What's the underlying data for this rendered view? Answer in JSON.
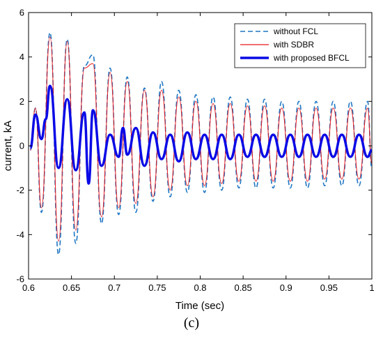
{
  "chart_data": {
    "type": "line",
    "title": "",
    "xlabel": "Time (sec)",
    "ylabel": "current, kA",
    "xlim": [
      0.6,
      1.0
    ],
    "ylim": [
      -6,
      6
    ],
    "xticks": [
      0.6,
      0.65,
      0.7,
      0.75,
      0.8,
      0.85,
      0.9,
      0.95,
      1.0
    ],
    "xtick_labels": [
      "0.6",
      "0.65",
      "0.7",
      "0.75",
      "0.8",
      "0.85",
      "0.9",
      "0.95",
      "1"
    ],
    "yticks": [
      -6,
      -4,
      -2,
      0,
      2,
      4,
      6
    ],
    "ytick_labels": [
      "-6",
      "-4",
      "-2",
      "0",
      "2",
      "4",
      "6"
    ],
    "grid": false,
    "legend_position": "top-right",
    "series": [
      {
        "name": "without FCL",
        "color": "#1f77c4",
        "style": "dashed",
        "peaks": [
          {
            "x": 0.602,
            "y": -0.2
          },
          {
            "x": 0.608,
            "y": 1.7
          },
          {
            "x": 0.615,
            "y": -3.0
          },
          {
            "x": 0.625,
            "y": 5.1
          },
          {
            "x": 0.635,
            "y": -4.9
          },
          {
            "x": 0.645,
            "y": 4.8
          },
          {
            "x": 0.655,
            "y": -4.4
          },
          {
            "x": 0.665,
            "y": 3.6
          },
          {
            "x": 0.675,
            "y": 4.1
          },
          {
            "x": 0.685,
            "y": -3.5
          },
          {
            "x": 0.695,
            "y": 3.5
          },
          {
            "x": 0.705,
            "y": -3.1
          },
          {
            "x": 0.715,
            "y": 3.1
          },
          {
            "x": 0.725,
            "y": -3.0
          },
          {
            "x": 0.735,
            "y": 2.6
          },
          {
            "x": 0.745,
            "y": -2.5
          },
          {
            "x": 0.755,
            "y": 2.9
          },
          {
            "x": 0.765,
            "y": -2.3
          },
          {
            "x": 0.775,
            "y": 2.5
          },
          {
            "x": 0.785,
            "y": -2.1
          },
          {
            "x": 0.795,
            "y": 2.3
          },
          {
            "x": 0.805,
            "y": -2.1
          },
          {
            "x": 0.815,
            "y": 2.2
          },
          {
            "x": 0.825,
            "y": -2.0
          },
          {
            "x": 0.835,
            "y": 2.2
          },
          {
            "x": 0.845,
            "y": -1.9
          },
          {
            "x": 0.855,
            "y": 2.1
          },
          {
            "x": 0.865,
            "y": -1.9
          },
          {
            "x": 0.875,
            "y": 2.1
          },
          {
            "x": 0.885,
            "y": -1.9
          },
          {
            "x": 0.895,
            "y": 2.0
          },
          {
            "x": 0.905,
            "y": -1.9
          },
          {
            "x": 0.915,
            "y": 2.0
          },
          {
            "x": 0.925,
            "y": -1.9
          },
          {
            "x": 0.935,
            "y": 2.0
          },
          {
            "x": 0.945,
            "y": -1.8
          },
          {
            "x": 0.955,
            "y": 2.0
          },
          {
            "x": 0.965,
            "y": -1.8
          },
          {
            "x": 0.975,
            "y": 2.0
          },
          {
            "x": 0.985,
            "y": -1.8
          },
          {
            "x": 0.995,
            "y": 2.0
          },
          {
            "x": 1.0,
            "y": -1.0
          }
        ]
      },
      {
        "name": "with SDBR",
        "color": "#e8161c",
        "style": "solid",
        "peaks": [
          {
            "x": 0.602,
            "y": -0.2
          },
          {
            "x": 0.608,
            "y": 1.7
          },
          {
            "x": 0.615,
            "y": -2.8
          },
          {
            "x": 0.625,
            "y": 4.9
          },
          {
            "x": 0.635,
            "y": -4.3
          },
          {
            "x": 0.645,
            "y": 4.7
          },
          {
            "x": 0.655,
            "y": -3.8
          },
          {
            "x": 0.665,
            "y": 3.5
          },
          {
            "x": 0.675,
            "y": 3.7
          },
          {
            "x": 0.685,
            "y": -3.2
          },
          {
            "x": 0.695,
            "y": 3.3
          },
          {
            "x": 0.705,
            "y": -2.8
          },
          {
            "x": 0.715,
            "y": 2.9
          },
          {
            "x": 0.725,
            "y": -2.6
          },
          {
            "x": 0.735,
            "y": 2.5
          },
          {
            "x": 0.745,
            "y": -2.3
          },
          {
            "x": 0.755,
            "y": 2.5
          },
          {
            "x": 0.765,
            "y": -2.0
          },
          {
            "x": 0.775,
            "y": 2.2
          },
          {
            "x": 0.785,
            "y": -1.8
          },
          {
            "x": 0.795,
            "y": 2.0
          },
          {
            "x": 0.805,
            "y": -1.8
          },
          {
            "x": 0.815,
            "y": 1.9
          },
          {
            "x": 0.825,
            "y": -1.7
          },
          {
            "x": 0.835,
            "y": 1.9
          },
          {
            "x": 0.845,
            "y": -1.6
          },
          {
            "x": 0.855,
            "y": 1.8
          },
          {
            "x": 0.865,
            "y": -1.6
          },
          {
            "x": 0.875,
            "y": 1.8
          },
          {
            "x": 0.885,
            "y": -1.6
          },
          {
            "x": 0.895,
            "y": 1.7
          },
          {
            "x": 0.905,
            "y": -1.6
          },
          {
            "x": 0.915,
            "y": 1.7
          },
          {
            "x": 0.925,
            "y": -1.6
          },
          {
            "x": 0.935,
            "y": 1.7
          },
          {
            "x": 0.945,
            "y": -1.5
          },
          {
            "x": 0.955,
            "y": 1.7
          },
          {
            "x": 0.965,
            "y": -1.5
          },
          {
            "x": 0.975,
            "y": 1.7
          },
          {
            "x": 0.985,
            "y": -1.5
          },
          {
            "x": 0.995,
            "y": 1.7
          },
          {
            "x": 1.0,
            "y": -0.8
          }
        ]
      },
      {
        "name": "with proposed BFCL",
        "color": "#0a0ae6",
        "style": "solid-thick",
        "peaks": [
          {
            "x": 0.602,
            "y": -0.1
          },
          {
            "x": 0.608,
            "y": 1.4
          },
          {
            "x": 0.615,
            "y": 0.3
          },
          {
            "x": 0.62,
            "y": 1.2
          },
          {
            "x": 0.625,
            "y": 2.7
          },
          {
            "x": 0.635,
            "y": -1.0
          },
          {
            "x": 0.645,
            "y": 2.1
          },
          {
            "x": 0.655,
            "y": -1.1
          },
          {
            "x": 0.665,
            "y": 1.5
          },
          {
            "x": 0.67,
            "y": -1.7
          },
          {
            "x": 0.675,
            "y": 1.6
          },
          {
            "x": 0.685,
            "y": -0.9
          },
          {
            "x": 0.695,
            "y": 0.5
          },
          {
            "x": 0.705,
            "y": -0.5
          },
          {
            "x": 0.71,
            "y": 0.8
          },
          {
            "x": 0.715,
            "y": -0.4
          },
          {
            "x": 0.725,
            "y": 0.8
          },
          {
            "x": 0.735,
            "y": -0.9
          },
          {
            "x": 0.745,
            "y": 0.6
          },
          {
            "x": 0.755,
            "y": -0.6
          },
          {
            "x": 0.765,
            "y": 0.5
          },
          {
            "x": 0.775,
            "y": -0.7
          },
          {
            "x": 0.785,
            "y": 0.6
          },
          {
            "x": 0.795,
            "y": -0.6
          },
          {
            "x": 0.805,
            "y": 0.5
          },
          {
            "x": 0.815,
            "y": -0.6
          },
          {
            "x": 0.825,
            "y": 0.5
          },
          {
            "x": 0.835,
            "y": -0.6
          },
          {
            "x": 0.845,
            "y": 0.5
          },
          {
            "x": 0.855,
            "y": -0.5
          },
          {
            "x": 0.865,
            "y": 0.5
          },
          {
            "x": 0.875,
            "y": -0.5
          },
          {
            "x": 0.885,
            "y": 0.5
          },
          {
            "x": 0.895,
            "y": -0.5
          },
          {
            "x": 0.905,
            "y": 0.5
          },
          {
            "x": 0.915,
            "y": -0.5
          },
          {
            "x": 0.925,
            "y": 0.5
          },
          {
            "x": 0.935,
            "y": -0.5
          },
          {
            "x": 0.945,
            "y": 0.5
          },
          {
            "x": 0.955,
            "y": -0.5
          },
          {
            "x": 0.965,
            "y": 0.5
          },
          {
            "x": 0.975,
            "y": -0.5
          },
          {
            "x": 0.985,
            "y": 0.5
          },
          {
            "x": 0.995,
            "y": -0.5
          },
          {
            "x": 1.0,
            "y": -0.2
          }
        ]
      }
    ]
  },
  "caption": "(c)"
}
